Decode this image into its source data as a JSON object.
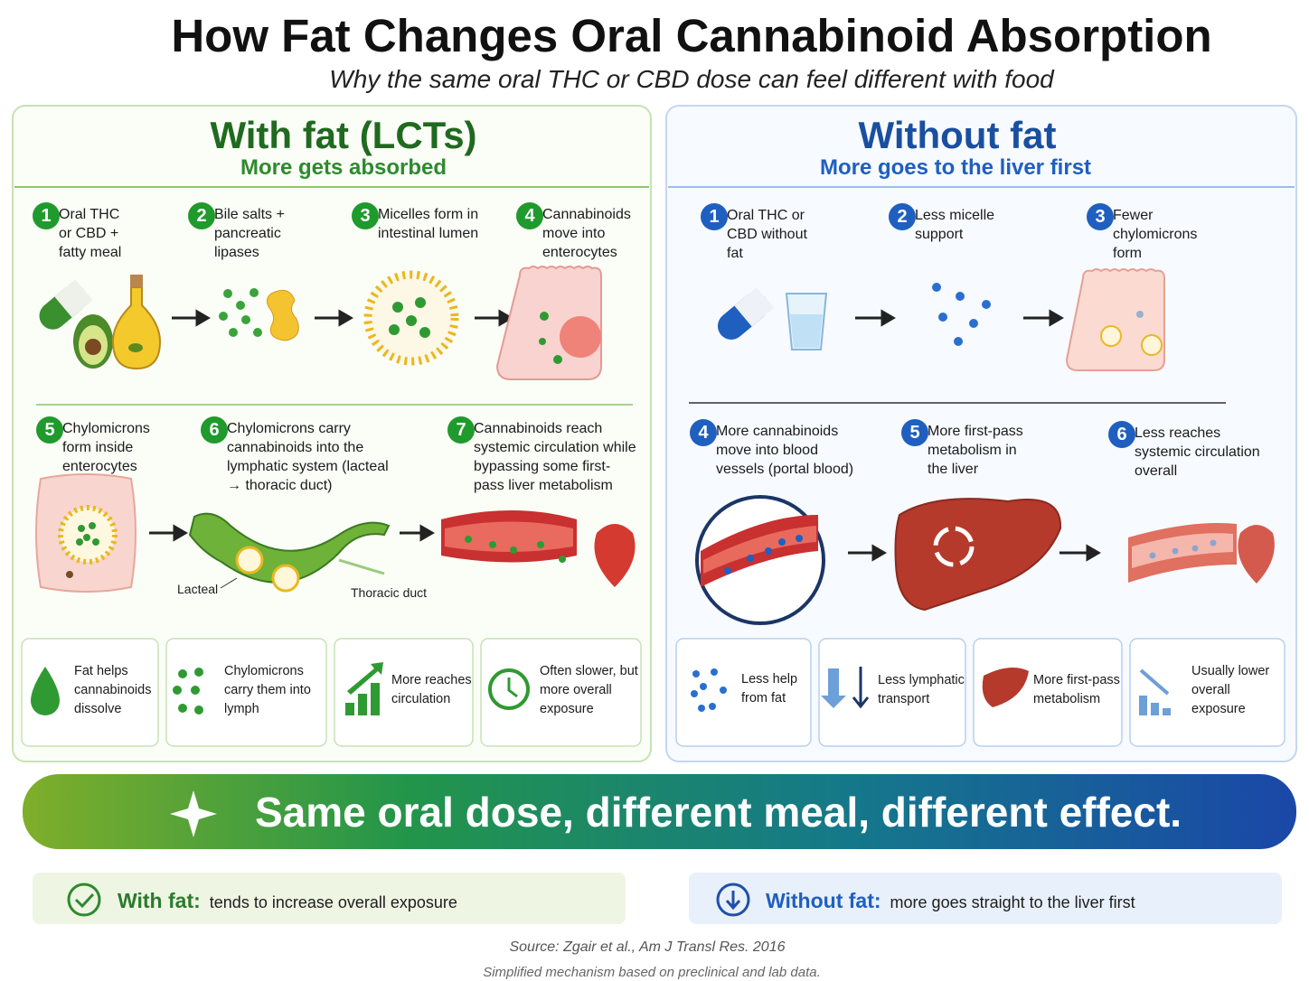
{
  "header": {
    "title": "How Fat Changes Oral Cannabinoid Absorption",
    "subtitle": "Why the same oral THC or CBD dose can feel different with food"
  },
  "with_fat": {
    "title": "With fat (LCTs)",
    "subtitle": "More gets absorbed",
    "steps": [
      {
        "number": 1,
        "text": "Oral THC or CBD + fatty meal"
      },
      {
        "number": 2,
        "text": "Bile salts + pancreatic lipases"
      },
      {
        "number": 3,
        "text": "Micelles form in intestinal lumen"
      },
      {
        "number": 4,
        "text": "Cannabinoids move into enterocytes"
      },
      {
        "number": 5,
        "text": "Chylomicrons form inside enterocytes"
      },
      {
        "number": 6,
        "text": "Chylomicrons carry cannabinoids into the lymphatic system (lacteal → thoracic duct)"
      },
      {
        "number": 7,
        "text": "Cannabinoids reach systemic circulation while bypassing some first-pass liver metabolism"
      }
    ],
    "labels": [
      "Lacteal",
      "Thoracic duct"
    ],
    "cards": [
      "Fat helps cannabinoids dissolve",
      "Chylomicrons carry them into lymph",
      "More reaches circulation",
      "Often slower, but more overall exposure"
    ]
  },
  "without_fat": {
    "title": "Without fat",
    "subtitle": "More goes to the liver first",
    "steps": [
      {
        "number": 1,
        "text": "Oral THC or CBD without fat"
      },
      {
        "number": 2,
        "text": "Less micelle support"
      },
      {
        "number": 3,
        "text": "Fewer chylomicrons form"
      },
      {
        "number": 4,
        "text": "More cannabinoids move into blood vessels (portal blood)"
      },
      {
        "number": 5,
        "text": "More first-pass metabolism in the liver"
      },
      {
        "number": 6,
        "text": "Less reaches systemic circulation overall"
      }
    ],
    "cards": [
      "Less help from fat",
      "Less lymphatic transport",
      "More first-pass metabolism",
      "Usually lower overall exposure"
    ]
  },
  "banner": "Same oral dose, different meal, different effect.",
  "summary": [
    {
      "label": "With fat:",
      "text": "tends to increase overall exposure"
    },
    {
      "label": "Without fat:",
      "text": "more goes straight to the liver first"
    }
  ],
  "source": {
    "citation": "Source: Zgair et al., Am J Transl Res. 2016",
    "note": "Simplified mechanism based on preclinical and lab data."
  }
}
